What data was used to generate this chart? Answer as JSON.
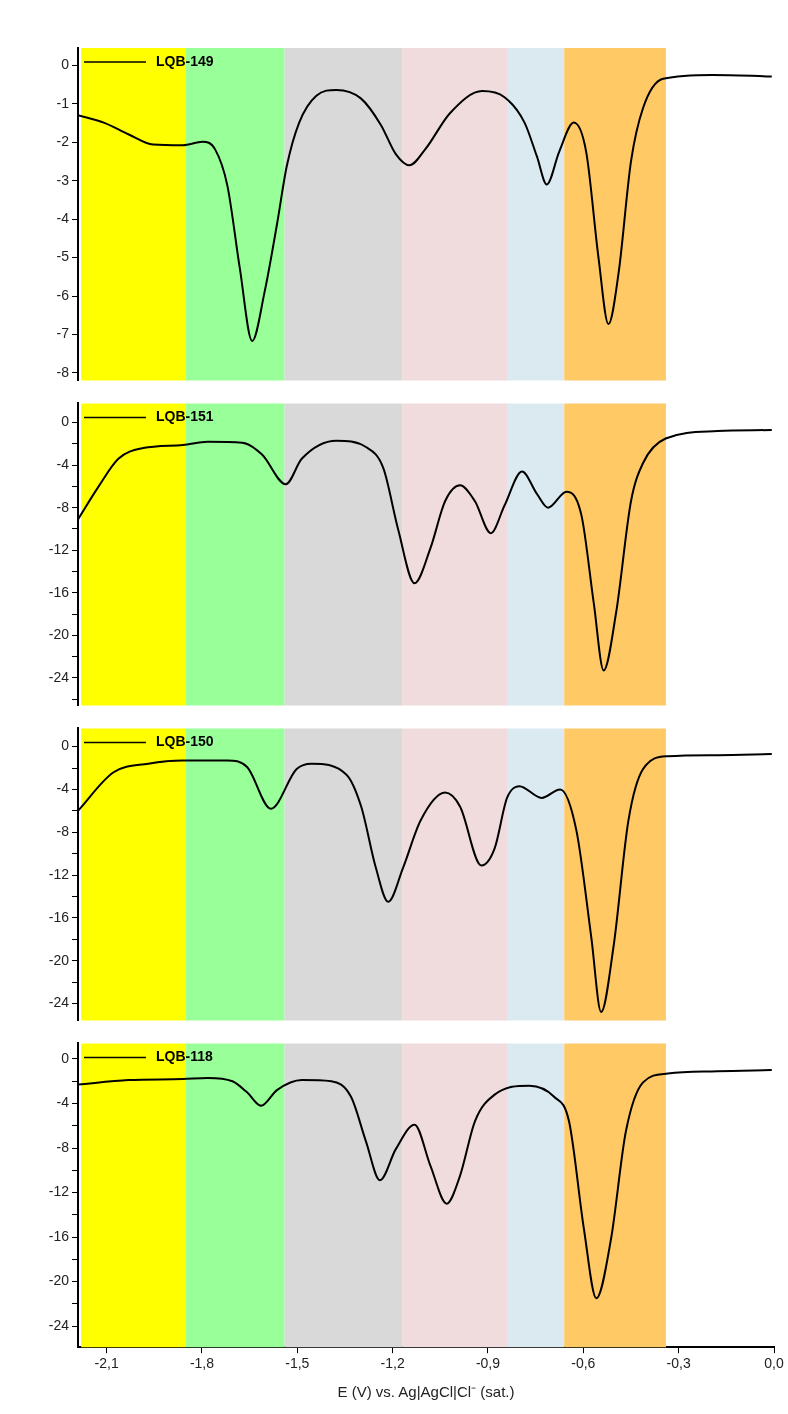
{
  "chart_data": [
    {
      "type": "line",
      "ylim": [
        -8.2,
        0.45
      ],
      "yticks": [
        -8,
        -7,
        -6,
        -5,
        -4,
        -3,
        -2,
        -1,
        0
      ],
      "xlim": [
        -2.19,
        0
      ],
      "tick_labels": "y",
      "legend": "top left",
      "marker": "none",
      "line_style": "solid",
      "bands": [
        {
          "axis": "x",
          "from": -2.18,
          "to": -1.85,
          "color": "#ffff00"
        },
        {
          "axis": "x",
          "from": -1.85,
          "to": -1.54,
          "color": "#99ff99"
        },
        {
          "axis": "x",
          "from": -1.54,
          "to": -1.17,
          "color": "#d9d9d9"
        },
        {
          "axis": "x",
          "from": -1.17,
          "to": -0.84,
          "color": "#f0dcdc"
        },
        {
          "axis": "x",
          "from": -0.84,
          "to": -0.66,
          "color": "#daeaf0"
        },
        {
          "axis": "x",
          "from": -0.66,
          "to": -0.34,
          "color": "#ffc966"
        }
      ],
      "series": [
        {
          "name": "LQB-149",
          "color": "#000000",
          "x": [
            -2.19,
            -2.109,
            -2.03,
            -1.954,
            -1.86,
            -1.798,
            -1.759,
            -1.72,
            -1.681,
            -1.642,
            -1.603,
            -1.564,
            -1.533,
            -1.494,
            -1.44,
            -1.377,
            -1.3,
            -1.237,
            -1.19,
            -1.147,
            -1.097,
            -1.019,
            -0.918,
            -0.848,
            -0.785,
            -0.746,
            -0.715,
            -0.676,
            -0.63,
            -0.591,
            -0.552,
            -0.521,
            -0.489,
            -0.45,
            -0.412,
            -0.349,
            -0.193,
            -0.007
          ],
          "values": [
            -1.3,
            -1.49,
            -1.8,
            -2.06,
            -2.08,
            -1.99,
            -2.18,
            -3.13,
            -5.27,
            -7.17,
            -5.9,
            -4.14,
            -2.62,
            -1.49,
            -0.79,
            -0.64,
            -0.86,
            -1.55,
            -2.31,
            -2.6,
            -2.18,
            -1.24,
            -0.67,
            -0.83,
            -1.49,
            -2.37,
            -3.1,
            -2.25,
            -1.49,
            -2.25,
            -5.02,
            -6.73,
            -5.4,
            -2.5,
            -1.11,
            -0.35,
            -0.25,
            -0.29
          ]
        }
      ]
    },
    {
      "type": "line",
      "ylim": [
        -26.6,
        1.8
      ],
      "yticks": [
        {
          "value": -26,
          "label": null
        },
        {
          "value": -24,
          "label": "-24"
        },
        {
          "value": -22,
          "label": null
        },
        {
          "value": -20,
          "label": "-20"
        },
        {
          "value": -18,
          "label": null
        },
        {
          "value": -16,
          "label": "-16"
        },
        {
          "value": -14,
          "label": null
        },
        {
          "value": -12,
          "label": "-12"
        },
        {
          "value": -10,
          "label": null
        },
        {
          "value": -8,
          "label": "-8"
        },
        {
          "value": -6,
          "label": null
        },
        {
          "value": -4,
          "label": "-4"
        },
        {
          "value": -2,
          "label": null
        },
        {
          "value": 0,
          "label": "0"
        }
      ],
      "xlim": [
        -2.19,
        0
      ],
      "tick_labels": "y",
      "legend": "top left",
      "marker": "none",
      "line_style": "solid",
      "bands": [
        {
          "axis": "x",
          "from": -2.18,
          "to": -1.85,
          "color": "#ffff00"
        },
        {
          "axis": "x",
          "from": -1.85,
          "to": -1.54,
          "color": "#99ff99"
        },
        {
          "axis": "x",
          "from": -1.54,
          "to": -1.17,
          "color": "#d9d9d9"
        },
        {
          "axis": "x",
          "from": -1.17,
          "to": -0.84,
          "color": "#f0dcdc"
        },
        {
          "axis": "x",
          "from": -0.84,
          "to": -0.66,
          "color": "#daeaf0"
        },
        {
          "axis": "x",
          "from": -0.66,
          "to": -0.34,
          "color": "#ffc966"
        }
      ],
      "series": [
        {
          "name": "LQB-151",
          "color": "#000000",
          "x": [
            -2.19,
            -2.125,
            -2.063,
            -1.985,
            -1.86,
            -1.782,
            -1.673,
            -1.611,
            -1.536,
            -1.486,
            -1.377,
            -1.284,
            -1.229,
            -1.183,
            -1.131,
            -1.081,
            -1.035,
            -0.988,
            -0.941,
            -0.891,
            -0.848,
            -0.793,
            -0.746,
            -0.711,
            -0.653,
            -0.606,
            -0.567,
            -0.536,
            -0.497,
            -0.45,
            -0.412,
            -0.341,
            -0.178,
            -0.007
          ],
          "values": [
            -9.1,
            -6.0,
            -3.4,
            -2.4,
            -2.1,
            -1.8,
            -1.9,
            -3.0,
            -5.8,
            -3.4,
            -1.7,
            -2.3,
            -4.3,
            -10.0,
            -15.1,
            -11.8,
            -7.4,
            -5.9,
            -7.4,
            -10.4,
            -7.8,
            -4.6,
            -6.7,
            -8.0,
            -6.5,
            -8.7,
            -17.0,
            -23.3,
            -17.9,
            -7.4,
            -3.8,
            -1.5,
            -0.8,
            -0.7
          ]
        }
      ]
    },
    {
      "type": "line",
      "ylim": [
        -25.6,
        1.7
      ],
      "yticks": [
        {
          "value": -24,
          "label": "-24"
        },
        {
          "value": -22,
          "label": null
        },
        {
          "value": -20,
          "label": "-20"
        },
        {
          "value": -18,
          "label": null
        },
        {
          "value": -16,
          "label": "-16"
        },
        {
          "value": -14,
          "label": null
        },
        {
          "value": -12,
          "label": "-12"
        },
        {
          "value": -10,
          "label": null
        },
        {
          "value": -8,
          "label": "-8"
        },
        {
          "value": -6,
          "label": null
        },
        {
          "value": -4,
          "label": "-4"
        },
        {
          "value": -2,
          "label": null
        },
        {
          "value": 0,
          "label": "0"
        }
      ],
      "xlim": [
        -2.19,
        0
      ],
      "tick_labels": "y",
      "legend": "top left",
      "marker": "none",
      "line_style": "solid",
      "bands": [
        {
          "axis": "x",
          "from": -2.18,
          "to": -1.85,
          "color": "#ffff00"
        },
        {
          "axis": "x",
          "from": -1.85,
          "to": -1.54,
          "color": "#99ff99"
        },
        {
          "axis": "x",
          "from": -1.54,
          "to": -1.17,
          "color": "#d9d9d9"
        },
        {
          "axis": "x",
          "from": -1.17,
          "to": -0.84,
          "color": "#f0dcdc"
        },
        {
          "axis": "x",
          "from": -0.84,
          "to": -0.66,
          "color": "#daeaf0"
        },
        {
          "axis": "x",
          "from": -0.66,
          "to": -0.34,
          "color": "#ffc966"
        }
      ],
      "series": [
        {
          "name": "LQB-150",
          "color": "#000000",
          "x": [
            -2.19,
            -2.078,
            -1.969,
            -1.86,
            -1.72,
            -1.658,
            -1.583,
            -1.502,
            -1.455,
            -1.346,
            -1.299,
            -1.253,
            -1.214,
            -1.167,
            -1.112,
            -1.035,
            -0.988,
            -0.921,
            -0.879,
            -0.84,
            -0.801,
            -0.731,
            -0.673,
            -0.622,
            -0.575,
            -0.544,
            -0.505,
            -0.458,
            -0.412,
            -0.334,
            -0.178,
            -0.007
          ],
          "values": [
            -6.0,
            -2.4,
            -1.6,
            -1.3,
            -1.3,
            -1.9,
            -5.8,
            -2.1,
            -1.6,
            -2.6,
            -5.6,
            -11.3,
            -14.5,
            -11.3,
            -6.9,
            -4.3,
            -5.6,
            -11.1,
            -9.5,
            -4.8,
            -3.7,
            -4.8,
            -4.0,
            -7.8,
            -17.8,
            -24.8,
            -18.7,
            -6.9,
            -2.1,
            -0.9,
            -0.8,
            -0.7
          ]
        }
      ]
    },
    {
      "type": "line",
      "ylim": [
        -25.9,
        1.4
      ],
      "yticks": [
        {
          "value": -24,
          "label": "-24"
        },
        {
          "value": -22,
          "label": null
        },
        {
          "value": -20,
          "label": "-20"
        },
        {
          "value": -18,
          "label": null
        },
        {
          "value": -16,
          "label": "-16"
        },
        {
          "value": -14,
          "label": null
        },
        {
          "value": -12,
          "label": "-12"
        },
        {
          "value": -10,
          "label": null
        },
        {
          "value": -8,
          "label": "-8"
        },
        {
          "value": -6,
          "label": null
        },
        {
          "value": -4,
          "label": "-4"
        },
        {
          "value": -2,
          "label": null
        },
        {
          "value": 0,
          "label": "0"
        }
      ],
      "xlim": [
        -2.19,
        0
      ],
      "xticks": [
        {
          "value": -2.1,
          "label": "-2,1"
        },
        {
          "value": -1.8,
          "label": "-1,8"
        },
        {
          "value": -1.5,
          "label": "-1,5"
        },
        {
          "value": -1.2,
          "label": "-1,2"
        },
        {
          "value": -0.9,
          "label": "-0,9"
        },
        {
          "value": -0.6,
          "label": "-0,6"
        },
        {
          "value": -0.3,
          "label": "-0,3"
        },
        {
          "value": 0,
          "label": "0,0"
        }
      ],
      "xlabel": "E (V) vs. Ag|AgCl|Cl⁻ (sat.)",
      "legend": "top left",
      "marker": "none",
      "line_style": "solid",
      "bands": [
        {
          "axis": "x",
          "from": -2.18,
          "to": -1.85,
          "color": "#ffff00"
        },
        {
          "axis": "x",
          "from": -1.85,
          "to": -1.54,
          "color": "#99ff99"
        },
        {
          "axis": "x",
          "from": -1.54,
          "to": -1.17,
          "color": "#d9d9d9"
        },
        {
          "axis": "x",
          "from": -1.17,
          "to": -0.84,
          "color": "#f0dcdc"
        },
        {
          "axis": "x",
          "from": -0.84,
          "to": -0.66,
          "color": "#daeaf0"
        },
        {
          "axis": "x",
          "from": -0.66,
          "to": -0.34,
          "color": "#ffc966"
        }
      ],
      "series": [
        {
          "name": "LQB-118",
          "color": "#000000",
          "x": [
            -2.19,
            -2.031,
            -1.86,
            -1.782,
            -1.704,
            -1.658,
            -1.614,
            -1.564,
            -1.486,
            -1.393,
            -1.331,
            -1.284,
            -1.24,
            -1.19,
            -1.131,
            -1.081,
            -1.03,
            -0.988,
            -0.941,
            -0.879,
            -0.77,
            -0.692,
            -0.645,
            -0.598,
            -0.559,
            -0.513,
            -0.466,
            -0.412,
            -0.334,
            -0.178,
            -0.007
          ],
          "values": [
            -2.3,
            -1.9,
            -1.8,
            -1.7,
            -2.0,
            -3.0,
            -4.2,
            -2.8,
            -1.9,
            -2.0,
            -3.4,
            -7.4,
            -10.9,
            -8.1,
            -5.9,
            -9.6,
            -13.0,
            -10.5,
            -5.6,
            -3.2,
            -2.4,
            -3.4,
            -5.6,
            -15.3,
            -21.5,
            -16.2,
            -6.5,
            -2.1,
            -1.3,
            -1.1,
            -1.0
          ]
        }
      ]
    }
  ]
}
